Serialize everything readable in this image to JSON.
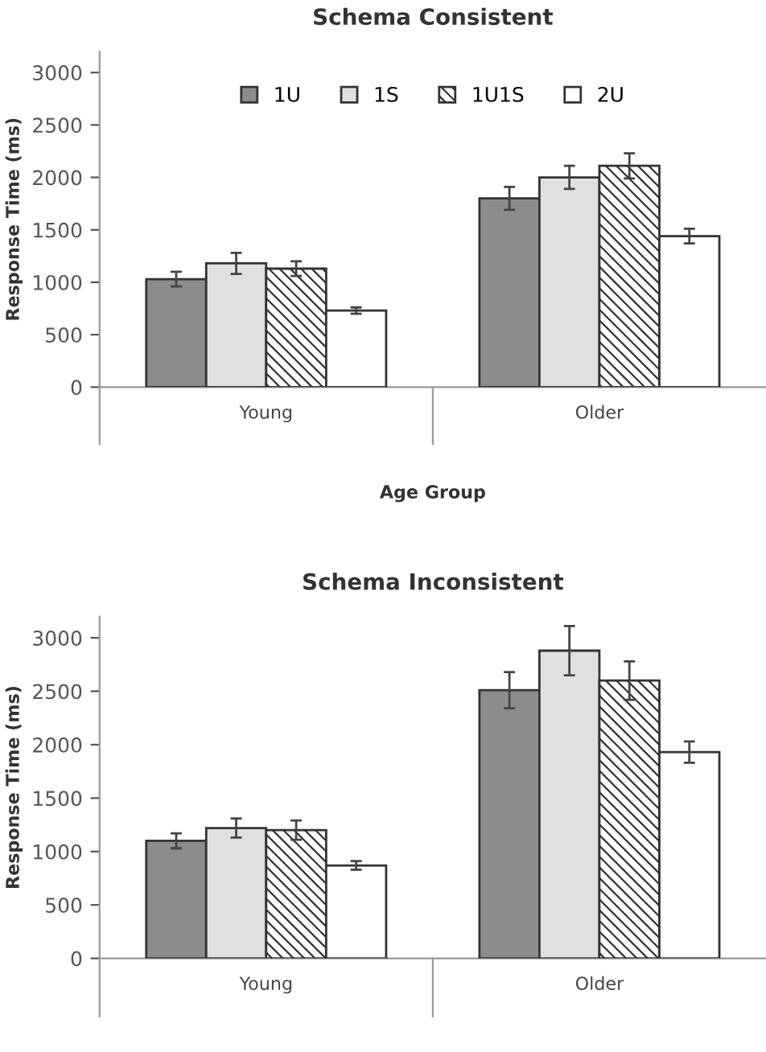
{
  "chart_data": [
    {
      "type": "bar",
      "title": "Schema Consistent",
      "xlabel": "Age Group",
      "ylabel": "Response Time (ms)",
      "categories": [
        "Young",
        "Older"
      ],
      "ylim": [
        0,
        3200
      ],
      "yticks": [
        0,
        500,
        1000,
        1500,
        2000,
        2500,
        3000
      ],
      "grid": false,
      "legend": "top",
      "series": [
        {
          "name": "1U",
          "color": "#8c8c8e",
          "values": [
            1030,
            1800
          ],
          "errors": [
            70,
            110
          ]
        },
        {
          "name": "1S",
          "color": "#e0e0e0",
          "values": [
            1180,
            2000
          ],
          "errors": [
            100,
            110
          ]
        },
        {
          "name": "1U1S",
          "color": "#333333",
          "values": [
            1130,
            2110
          ],
          "errors": [
            70,
            120
          ]
        },
        {
          "name": "2U",
          "color": "#ffffff",
          "values": [
            730,
            1440
          ],
          "errors": [
            30,
            70
          ]
        }
      ]
    },
    {
      "type": "bar",
      "title": "Schema Inconsistent",
      "ylabel": "Response Time (ms)",
      "categories": [
        "Young",
        "Older"
      ],
      "ylim": [
        0,
        3200
      ],
      "yticks": [
        0,
        500,
        1000,
        1500,
        2000,
        2500,
        3000
      ],
      "grid": false,
      "series": [
        {
          "color": "#8c8c8e",
          "values": [
            1100,
            2510
          ],
          "errors": [
            70,
            170
          ]
        },
        {
          "color": "#e0e0e0",
          "values": [
            1220,
            2880
          ],
          "errors": [
            90,
            230
          ]
        },
        {
          "color": "#333333",
          "values": [
            1200,
            2600
          ],
          "errors": [
            90,
            180
          ]
        },
        {
          "color": "#ffffff",
          "values": [
            870,
            1930
          ],
          "errors": [
            40,
            100
          ]
        }
      ]
    }
  ]
}
